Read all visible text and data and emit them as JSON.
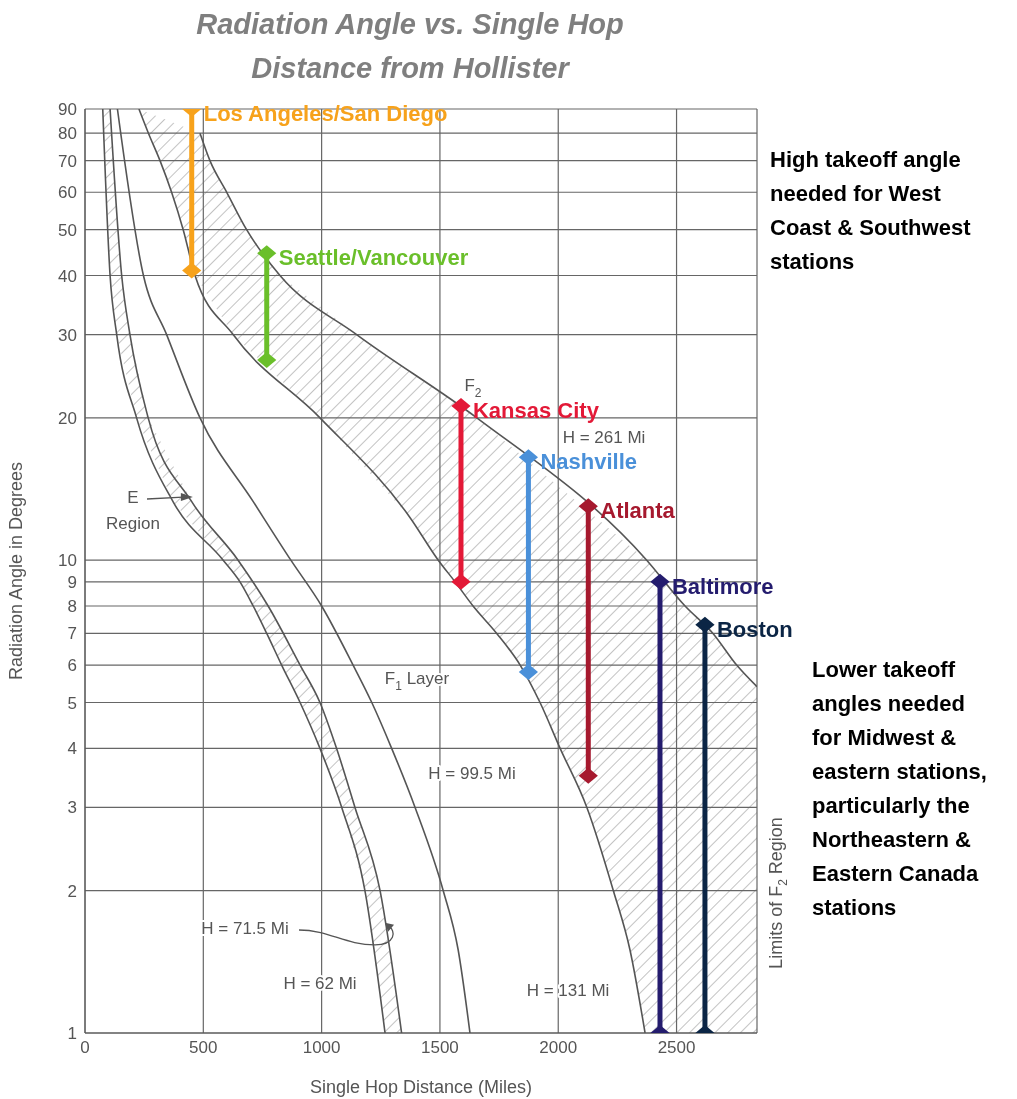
{
  "chart_data": {
    "type": "line",
    "title": "Radiation Angle vs. Single Hop Distance from Hollister",
    "xlabel": "Single Hop Distance (Miles)",
    "ylabel": "Radiation Angle in Degrees",
    "xlim": [
      0,
      2840
    ],
    "xticks": [
      0,
      500,
      1000,
      1500,
      2000,
      2500
    ],
    "ylim": [
      1,
      90
    ],
    "yticks": [
      1,
      2,
      3,
      4,
      5,
      6,
      7,
      8,
      9,
      10,
      20,
      30,
      40,
      50,
      60,
      70,
      80,
      90
    ],
    "log": "y",
    "grid": true,
    "series": [
      {
        "color": "#555555",
        "marker": "none",
        "x": [
          75,
          106,
          134,
          218,
          372,
          584,
          655,
          711,
          768,
          831,
          909,
          993,
          1085,
          1183,
          1268
        ],
        "values": [
          90,
          40,
          30,
          20,
          13.3,
          10,
          9,
          8,
          7,
          6,
          5,
          4,
          3,
          2,
          1
        ]
      },
      {
        "color": "#555555",
        "marker": "none",
        "x": [
          106,
          155,
          190,
          267,
          451,
          647,
          774,
          909,
          993,
          1063,
          1141,
          1247,
          1338
        ],
        "values": [
          90,
          40,
          30,
          20,
          13.3,
          10,
          8,
          6,
          5,
          4,
          3,
          2,
          1
        ]
      },
      {
        "color": "#555555",
        "marker": "none",
        "x": [
          137,
          247,
          345,
          486,
          711,
          870,
          1000,
          1133,
          1212,
          1296,
          1395,
          1514,
          1577,
          1627
        ],
        "values": [
          90,
          40,
          30,
          20,
          13.3,
          10,
          8,
          6,
          5,
          4,
          3,
          2,
          1.5,
          1
        ]
      },
      {
        "color": "#555555",
        "marker": "none",
        "x": [
          228,
          268,
          317,
          366,
          415,
          465,
          626,
          993,
          1374,
          1493,
          1564,
          1640,
          1740,
          1839,
          1923,
          2008,
          2121,
          2233,
          2303,
          2367
        ],
        "values": [
          90,
          80,
          70,
          60,
          50,
          40,
          30,
          20,
          12.3,
          10,
          9,
          8,
          7,
          6,
          5,
          4,
          3,
          2,
          1.5,
          1
        ]
      },
      {
        "color": "#555555",
        "marker": "none",
        "x": [
          486,
          528,
          599,
          683,
          824,
          1148,
          1656,
          2374,
          2536,
          2654,
          2754,
          2840
        ],
        "values": [
          80,
          70,
          60,
          50,
          40,
          30,
          20,
          10,
          8,
          7,
          6,
          5.4
        ]
      },
      {
        "name": "Los Angeles/San Diego",
        "color": "#f7a21b",
        "marker": "diamond",
        "x": [
          451,
          451
        ],
        "values": [
          41,
          90
        ]
      },
      {
        "name": "Seattle/Vancouver",
        "color": "#6abf2a",
        "marker": "diamond",
        "x": [
          768,
          768
        ],
        "values": [
          26.5,
          44.6
        ]
      },
      {
        "name": "Kansas City",
        "color": "#e31937",
        "marker": "diamond",
        "x": [
          1589,
          1589
        ],
        "values": [
          9,
          21.2
        ]
      },
      {
        "name": "Nashville",
        "color": "#4a90d9",
        "marker": "diamond",
        "x": [
          1874,
          1874
        ],
        "values": [
          5.8,
          16.5
        ]
      },
      {
        "name": "Atlanta",
        "color": "#a6192e",
        "marker": "diamond",
        "x": [
          2127,
          2127
        ],
        "values": [
          3.5,
          13
        ]
      },
      {
        "name": "Baltimore",
        "color": "#241c6e",
        "marker": "diamond",
        "x": [
          2430,
          2430
        ],
        "values": [
          1,
          9
        ]
      },
      {
        "name": "Boston",
        "color": "#0b2545",
        "marker": "diamond",
        "x": [
          2620,
          2620
        ],
        "values": [
          1,
          7.3
        ]
      }
    ],
    "annotations": [
      {
        "text": "E\nRegion",
        "x": 456,
        "y": 13.6
      },
      {
        "text": "H = 71.5 Mi",
        "x": 1268,
        "y": 1.71
      },
      "H = 62 Mi",
      "F$_{1}$ Layer",
      "H = 99.5 Mi",
      "H = 131 Mi",
      "F$_{2}$",
      "H = 261 Mi",
      "High takeoff angle\nneeded for West\nCoast & Southwest\nstations",
      "Lower takeoff\nangles needed\nfor Midwest &\neastern stations,\nparticularly the\nNortheastern &\nEastern Canada\nstations",
      "Limits of F$_{2}$ Region"
    ]
  }
}
